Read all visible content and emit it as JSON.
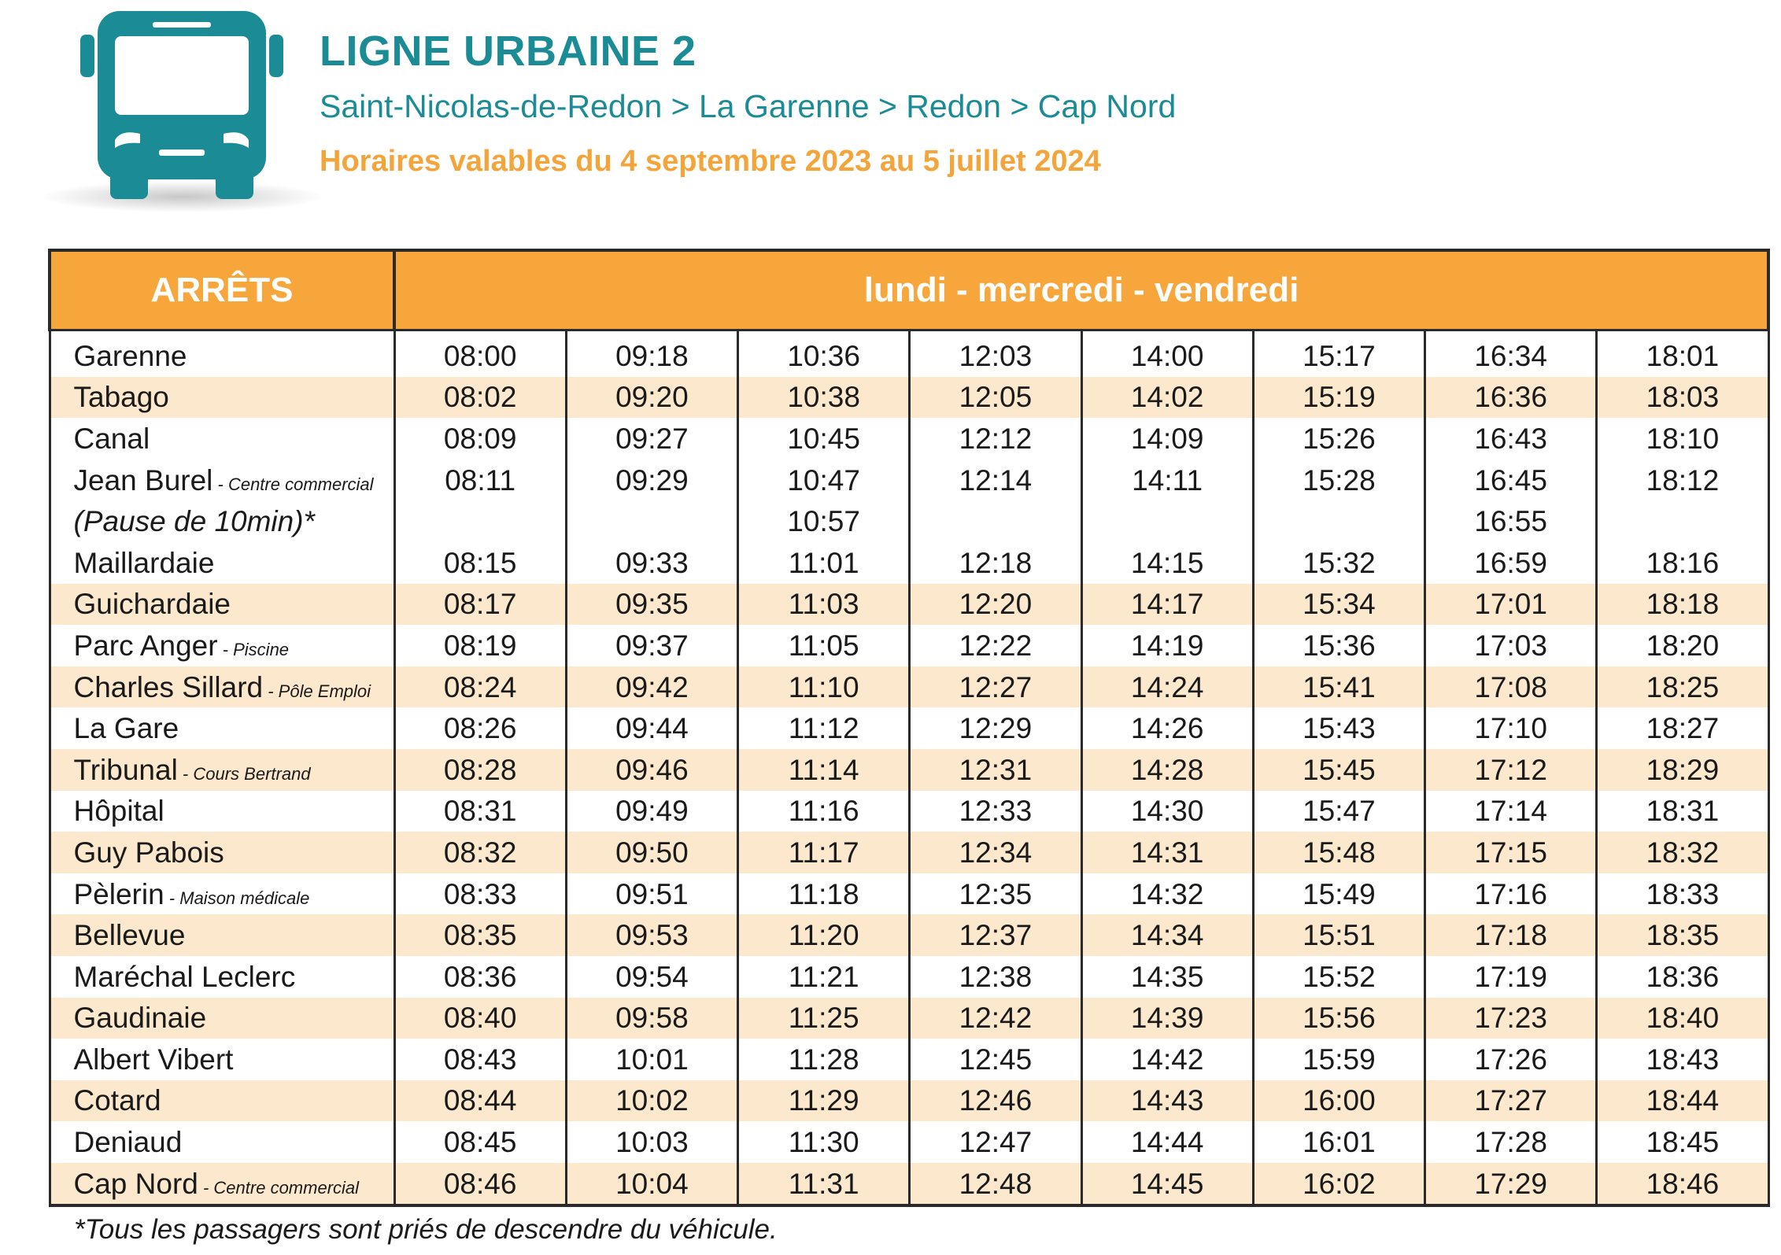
{
  "header": {
    "title": "LIGNE URBAINE 2",
    "route": "Saint-Nicolas-de-Redon > La Garenne > Redon > Cap Nord",
    "validity": "Horaires valables du 4 septembre 2023 au 5 juillet 2024",
    "icon": "bus-icon",
    "accent_color": "#1b8c96",
    "highlight_color": "#f3a43a"
  },
  "table": {
    "header_stops": "ARRÊTS",
    "header_days": "lundi - mercredi - vendredi",
    "header_color": "#f6a63a",
    "stripe_color": "#fce8cc",
    "rows": [
      {
        "stop": "Garenne",
        "sub": "",
        "times": [
          "08:00",
          "09:18",
          "10:36",
          "12:03",
          "14:00",
          "15:17",
          "16:34",
          "18:01"
        ]
      },
      {
        "stop": "Tabago",
        "sub": "",
        "times": [
          "08:02",
          "09:20",
          "10:38",
          "12:05",
          "14:02",
          "15:19",
          "16:36",
          "18:03"
        ]
      },
      {
        "stop": "Canal",
        "sub": "",
        "times": [
          "08:09",
          "09:27",
          "10:45",
          "12:12",
          "14:09",
          "15:26",
          "16:43",
          "18:10"
        ]
      },
      {
        "stop": "Jean Burel",
        "sub": "Centre commercial",
        "times": [
          "08:11",
          "09:29",
          "10:47",
          "12:14",
          "14:11",
          "15:28",
          "16:45",
          "18:12"
        ]
      },
      {
        "stop": "(Pause de 10min)*",
        "sub": "",
        "pause": true,
        "times": [
          "",
          "",
          "10:57",
          "",
          "",
          "",
          "16:55",
          ""
        ]
      },
      {
        "stop": "Maillardaie",
        "sub": "",
        "times": [
          "08:15",
          "09:33",
          "11:01",
          "12:18",
          "14:15",
          "15:32",
          "16:59",
          "18:16"
        ]
      },
      {
        "stop": "Guichardaie",
        "sub": "",
        "times": [
          "08:17",
          "09:35",
          "11:03",
          "12:20",
          "14:17",
          "15:34",
          "17:01",
          "18:18"
        ]
      },
      {
        "stop": "Parc Anger",
        "sub": "Piscine",
        "times": [
          "08:19",
          "09:37",
          "11:05",
          "12:22",
          "14:19",
          "15:36",
          "17:03",
          "18:20"
        ]
      },
      {
        "stop": "Charles Sillard",
        "sub": "Pôle Emploi",
        "times": [
          "08:24",
          "09:42",
          "11:10",
          "12:27",
          "14:24",
          "15:41",
          "17:08",
          "18:25"
        ]
      },
      {
        "stop": "La Gare",
        "sub": "",
        "times": [
          "08:26",
          "09:44",
          "11:12",
          "12:29",
          "14:26",
          "15:43",
          "17:10",
          "18:27"
        ]
      },
      {
        "stop": "Tribunal",
        "sub": "Cours Bertrand",
        "times": [
          "08:28",
          "09:46",
          "11:14",
          "12:31",
          "14:28",
          "15:45",
          "17:12",
          "18:29"
        ]
      },
      {
        "stop": "Hôpital",
        "sub": "",
        "times": [
          "08:31",
          "09:49",
          "11:16",
          "12:33",
          "14:30",
          "15:47",
          "17:14",
          "18:31"
        ]
      },
      {
        "stop": "Guy Pabois",
        "sub": "",
        "times": [
          "08:32",
          "09:50",
          "11:17",
          "12:34",
          "14:31",
          "15:48",
          "17:15",
          "18:32"
        ]
      },
      {
        "stop": "Pèlerin",
        "sub": "Maison médicale",
        "times": [
          "08:33",
          "09:51",
          "11:18",
          "12:35",
          "14:32",
          "15:49",
          "17:16",
          "18:33"
        ]
      },
      {
        "stop": "Bellevue",
        "sub": "",
        "times": [
          "08:35",
          "09:53",
          "11:20",
          "12:37",
          "14:34",
          "15:51",
          "17:18",
          "18:35"
        ]
      },
      {
        "stop": "Maréchal Leclerc",
        "sub": "",
        "times": [
          "08:36",
          "09:54",
          "11:21",
          "12:38",
          "14:35",
          "15:52",
          "17:19",
          "18:36"
        ]
      },
      {
        "stop": "Gaudinaie",
        "sub": "",
        "times": [
          "08:40",
          "09:58",
          "11:25",
          "12:42",
          "14:39",
          "15:56",
          "17:23",
          "18:40"
        ]
      },
      {
        "stop": "Albert Vibert",
        "sub": "",
        "times": [
          "08:43",
          "10:01",
          "11:28",
          "12:45",
          "14:42",
          "15:59",
          "17:26",
          "18:43"
        ]
      },
      {
        "stop": "Cotard",
        "sub": "",
        "times": [
          "08:44",
          "10:02",
          "11:29",
          "12:46",
          "14:43",
          "16:00",
          "17:27",
          "18:44"
        ]
      },
      {
        "stop": "Deniaud",
        "sub": "",
        "times": [
          "08:45",
          "10:03",
          "11:30",
          "12:47",
          "14:44",
          "16:01",
          "17:28",
          "18:45"
        ]
      },
      {
        "stop": "Cap Nord",
        "sub": "Centre commercial",
        "times": [
          "08:46",
          "10:04",
          "11:31",
          "12:48",
          "14:45",
          "16:02",
          "17:29",
          "18:46"
        ]
      }
    ]
  },
  "footnote": "*Tous les passagers sont priés de descendre du véhicule."
}
